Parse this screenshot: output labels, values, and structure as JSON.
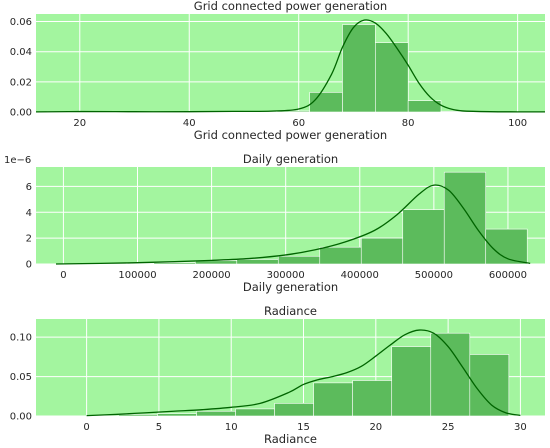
{
  "colors": {
    "axes_bg": "#a3f59f",
    "grid": "#ffffff",
    "bar": "#5cbb5c",
    "bar_edge": "#ffffff",
    "kde": "#006400"
  },
  "chart_data": [
    {
      "type": "histogram",
      "title": "Grid connected power generation",
      "xlabel": "Grid connected power generation",
      "ylabel": "",
      "xlim": [
        12,
        105
      ],
      "ylim": [
        0,
        0.065
      ],
      "xticks": [
        20,
        40,
        60,
        80,
        100
      ],
      "xtick_labels": [
        "20",
        "40",
        "60",
        "80",
        "100"
      ],
      "yticks": [
        0,
        0.02,
        0.04,
        0.06
      ],
      "ytick_labels": [
        "0.00",
        "0.02",
        "0.04",
        "0.06"
      ],
      "offset_label": "",
      "bins": [
        {
          "x0": 14,
          "x1": 20,
          "y": 0.0003
        },
        {
          "x0": 20,
          "x1": 26,
          "y": 0.0001
        },
        {
          "x0": 26,
          "x1": 32,
          "y": 0.0002
        },
        {
          "x0": 32,
          "x1": 38,
          "y": 0.0001
        },
        {
          "x0": 38,
          "x1": 44,
          "y": 0.0003
        },
        {
          "x0": 44,
          "x1": 50,
          "y": 0.0004
        },
        {
          "x0": 50,
          "x1": 56,
          "y": 0.0005
        },
        {
          "x0": 56,
          "x1": 62,
          "y": 0.0007
        },
        {
          "x0": 62,
          "x1": 68,
          "y": 0.013
        },
        {
          "x0": 68,
          "x1": 74,
          "y": 0.058
        },
        {
          "x0": 74,
          "x1": 80,
          "y": 0.046
        },
        {
          "x0": 80,
          "x1": 86,
          "y": 0.0075
        },
        {
          "x0": 86,
          "x1": 92,
          "y": 0.0005
        }
      ],
      "kde": {
        "x": [
          12,
          20,
          30,
          40,
          48,
          55,
          60,
          63,
          66,
          68,
          70,
          72,
          74,
          76,
          78,
          80,
          82,
          84,
          86,
          88,
          90,
          95,
          100,
          105
        ],
        "y": [
          0.0001,
          0.0003,
          0.0002,
          0.0002,
          0.0004,
          0.0006,
          0.002,
          0.008,
          0.025,
          0.043,
          0.056,
          0.061,
          0.059,
          0.052,
          0.042,
          0.031,
          0.019,
          0.01,
          0.0045,
          0.0018,
          0.0007,
          0.0002,
          0.0001,
          0.0001
        ]
      }
    },
    {
      "type": "histogram",
      "title": "Daily generation",
      "xlabel": "Daily generation",
      "ylabel": "",
      "xlim": [
        -37000,
        650000
      ],
      "ylim": [
        0,
        7.5
      ],
      "xticks": [
        0,
        100000,
        200000,
        300000,
        400000,
        500000,
        600000
      ],
      "xtick_labels": [
        "0",
        "100000",
        "200000",
        "300000",
        "400000",
        "500000",
        "600000"
      ],
      "yticks": [
        0,
        2,
        4,
        6
      ],
      "ytick_labels": [
        "0",
        "2",
        "4",
        "6"
      ],
      "offset_label": "1e−6",
      "bins": [
        {
          "x0": 10000,
          "x1": 66000,
          "y": 0.02
        },
        {
          "x0": 66000,
          "x1": 122000,
          "y": 0.05
        },
        {
          "x0": 122000,
          "x1": 178000,
          "y": 0.1
        },
        {
          "x0": 178000,
          "x1": 234000,
          "y": 0.25
        },
        {
          "x0": 234000,
          "x1": 290000,
          "y": 0.35
        },
        {
          "x0": 290000,
          "x1": 346000,
          "y": 0.6
        },
        {
          "x0": 346000,
          "x1": 402000,
          "y": 1.3
        },
        {
          "x0": 402000,
          "x1": 458000,
          "y": 2.0
        },
        {
          "x0": 458000,
          "x1": 514000,
          "y": 4.2
        },
        {
          "x0": 514000,
          "x1": 570000,
          "y": 7.1
        },
        {
          "x0": 570000,
          "x1": 626000,
          "y": 2.7
        }
      ],
      "kde": {
        "x": [
          -10000,
          50000,
          100000,
          150000,
          200000,
          250000,
          300000,
          340000,
          380000,
          420000,
          450000,
          480000,
          500000,
          520000,
          540000,
          560000,
          580000,
          600000,
          630000
        ],
        "y": [
          0,
          0.05,
          0.1,
          0.18,
          0.28,
          0.42,
          0.7,
          1.1,
          1.7,
          2.6,
          3.8,
          5.4,
          6.1,
          5.7,
          4.3,
          2.6,
          1.2,
          0.4,
          0.05
        ]
      }
    },
    {
      "type": "histogram",
      "title": "Radiance",
      "xlabel": "Radiance",
      "ylabel": "",
      "xlim": [
        -3.5,
        31.7
      ],
      "ylim": [
        0,
        0.123
      ],
      "xticks": [
        0,
        5,
        10,
        15,
        20,
        25,
        30
      ],
      "xtick_labels": [
        "0",
        "5",
        "10",
        "15",
        "20",
        "25",
        "30"
      ],
      "yticks": [
        0,
        0.05,
        0.1
      ],
      "ytick_labels": [
        "0.00",
        "0.05",
        "0.10"
      ],
      "offset_label": "",
      "bins": [
        {
          "x0": 2.2,
          "x1": 4.9,
          "y": 0.002
        },
        {
          "x0": 4.9,
          "x1": 7.6,
          "y": 0.003
        },
        {
          "x0": 7.6,
          "x1": 10.3,
          "y": 0.006
        },
        {
          "x0": 10.3,
          "x1": 13.0,
          "y": 0.009
        },
        {
          "x0": 13.0,
          "x1": 15.7,
          "y": 0.016
        },
        {
          "x0": 15.7,
          "x1": 18.4,
          "y": 0.042
        },
        {
          "x0": 18.4,
          "x1": 21.1,
          "y": 0.045
        },
        {
          "x0": 21.1,
          "x1": 23.8,
          "y": 0.088
        },
        {
          "x0": 23.8,
          "x1": 26.5,
          "y": 0.105
        },
        {
          "x0": 26.5,
          "x1": 29.2,
          "y": 0.078
        }
      ],
      "kde": {
        "x": [
          0,
          2,
          4,
          6,
          8,
          10,
          12,
          14,
          15,
          16,
          17,
          18,
          19,
          20,
          21,
          22,
          23,
          24,
          25,
          26,
          27,
          28,
          29,
          30
        ],
        "y": [
          0.0005,
          0.002,
          0.004,
          0.006,
          0.008,
          0.011,
          0.016,
          0.03,
          0.04,
          0.046,
          0.05,
          0.055,
          0.063,
          0.076,
          0.09,
          0.103,
          0.109,
          0.105,
          0.088,
          0.062,
          0.035,
          0.014,
          0.004,
          0.0008
        ]
      }
    }
  ]
}
